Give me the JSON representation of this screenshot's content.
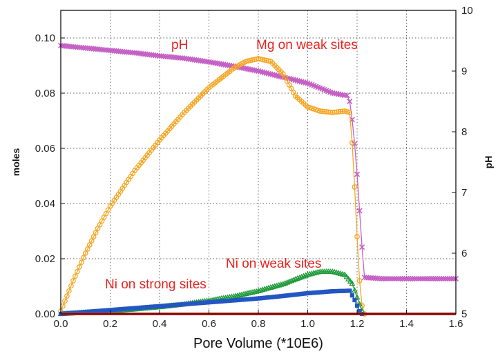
{
  "chart_data": {
    "type": "line",
    "title": "",
    "xlabel": "Pore Volume (*10E6)",
    "ylabel": "moles",
    "y2label": "pH",
    "xlim": [
      0.0,
      1.6
    ],
    "ylim": [
      0.0,
      0.11
    ],
    "y2lim": [
      5,
      10
    ],
    "grid": true,
    "x_ticks": [
      "0.0",
      "0.2",
      "0.4",
      "0.6",
      "0.8",
      "1.0",
      "1.2",
      "1.4",
      "1.6"
    ],
    "y_ticks": [
      "0.00",
      "0.02",
      "0.04",
      "0.06",
      "0.08",
      "0.10"
    ],
    "y2_ticks": [
      "5",
      "6",
      "7",
      "8",
      "9",
      "10"
    ],
    "annotations": [
      "pH",
      "Mg on weak sites",
      "Ni on weak sites",
      "Ni on strong sites"
    ],
    "series": [
      {
        "axis": "right",
        "color": "#c45ec4",
        "marker": "x",
        "x": [
          0.0,
          0.1,
          0.2,
          0.3,
          0.4,
          0.5,
          0.6,
          0.7,
          0.8,
          0.9,
          1.0,
          1.05,
          1.1,
          1.15,
          1.16,
          1.17,
          1.18,
          1.19,
          1.2,
          1.21,
          1.22,
          1.23,
          1.3,
          1.4,
          1.5,
          1.6
        ],
        "y": [
          9.42,
          9.38,
          9.34,
          9.3,
          9.25,
          9.21,
          9.15,
          9.08,
          9.0,
          8.9,
          8.8,
          8.72,
          8.64,
          8.6,
          8.6,
          8.5,
          8.2,
          7.8,
          7.3,
          6.7,
          6.1,
          5.6,
          5.58,
          5.58,
          5.58,
          5.58
        ]
      },
      {
        "axis": "left",
        "color": "#f5a623",
        "marker": "o",
        "x": [
          0.0,
          0.05,
          0.1,
          0.15,
          0.2,
          0.3,
          0.4,
          0.5,
          0.6,
          0.7,
          0.75,
          0.8,
          0.85,
          0.9,
          0.95,
          1.0,
          1.05,
          1.1,
          1.15,
          1.17,
          1.18,
          1.19,
          1.2,
          1.21,
          1.22,
          1.23
        ],
        "y": [
          0.001,
          0.012,
          0.022,
          0.031,
          0.039,
          0.052,
          0.063,
          0.073,
          0.082,
          0.089,
          0.0915,
          0.0925,
          0.0915,
          0.087,
          0.079,
          0.075,
          0.0735,
          0.073,
          0.0735,
          0.073,
          0.062,
          0.046,
          0.028,
          0.012,
          0.003,
          0.0
        ]
      },
      {
        "axis": "left",
        "color": "#1f9a3a",
        "marker": "triangle",
        "x": [
          0.0,
          0.1,
          0.2,
          0.3,
          0.4,
          0.5,
          0.6,
          0.7,
          0.8,
          0.9,
          0.95,
          1.0,
          1.05,
          1.1,
          1.15,
          1.18,
          1.2,
          1.22
        ],
        "y": [
          0.0,
          0.0005,
          0.001,
          0.0017,
          0.0025,
          0.0035,
          0.0048,
          0.0063,
          0.0083,
          0.0108,
          0.0125,
          0.0142,
          0.0153,
          0.0153,
          0.0142,
          0.011,
          0.006,
          0.001
        ]
      },
      {
        "axis": "left",
        "color": "#2456c2",
        "marker": "square",
        "x": [
          0.0,
          0.1,
          0.2,
          0.3,
          0.4,
          0.5,
          0.6,
          0.7,
          0.8,
          0.9,
          1.0,
          1.1,
          1.17,
          1.19,
          1.21,
          1.22
        ],
        "y": [
          0.0,
          0.0007,
          0.0014,
          0.0021,
          0.0028,
          0.0035,
          0.0042,
          0.0049,
          0.0056,
          0.0065,
          0.0075,
          0.0082,
          0.0084,
          0.005,
          0.001,
          0.0
        ]
      },
      {
        "axis": "left",
        "color": "#e8231e",
        "marker": "line",
        "x": [
          0.0,
          1.6
        ],
        "y": [
          0.0,
          0.0
        ]
      }
    ]
  }
}
